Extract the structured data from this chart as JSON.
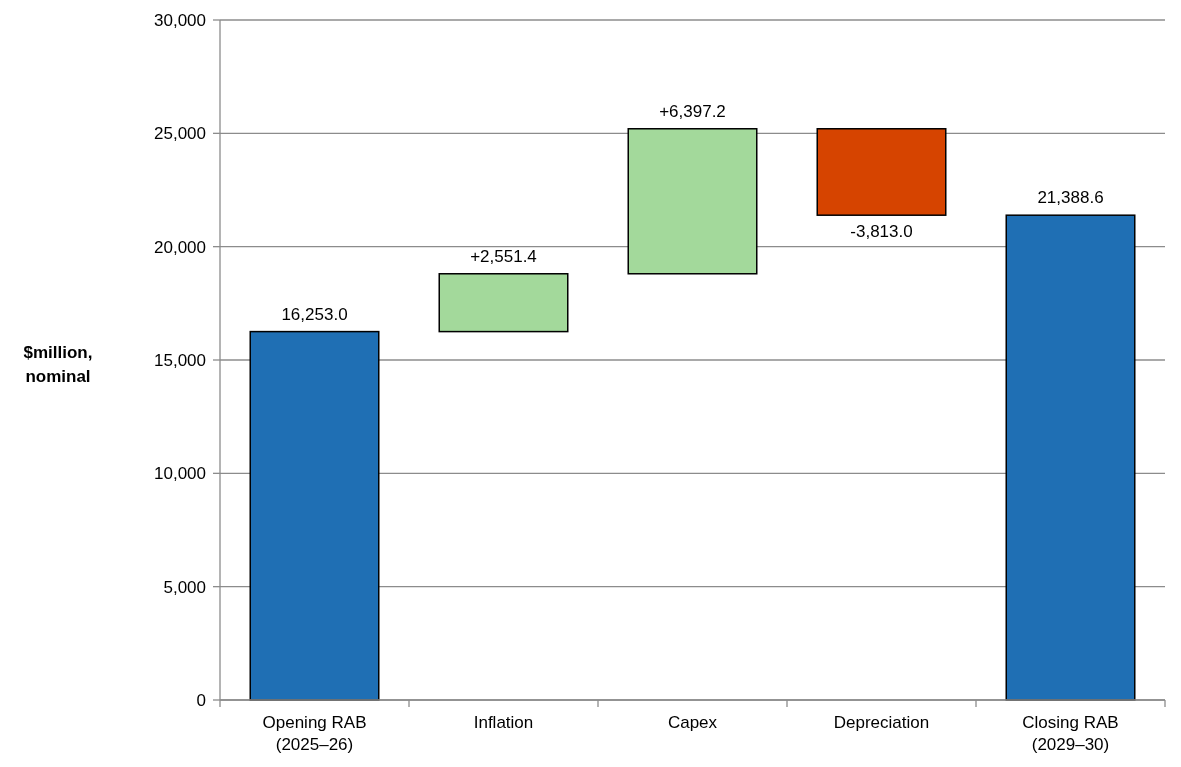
{
  "chart_data": {
    "type": "bar",
    "ylabel": "$million,\nnominal",
    "categories": [
      "Opening RAB\n(2025–26)",
      "Inflation",
      "Capex",
      "Depreciation",
      "Closing RAB\n(2029–30)"
    ],
    "values": [
      16253.0,
      2551.4,
      6397.2,
      -3813.0,
      21388.6
    ],
    "base": [
      0,
      16253.0,
      18804.4,
      25201.6,
      0
    ],
    "colors": [
      "#1f6fb4",
      "#a3d99b",
      "#a3d99b",
      "#d64400",
      "#1f6fb4"
    ],
    "value_labels": [
      "16,253.0",
      "+2,551.4",
      "+6,397.2",
      "-3,813.0",
      "21,388.6"
    ],
    "ylim": [
      0,
      30000
    ],
    "yticks": [
      {
        "value": 0,
        "label": "0"
      },
      {
        "value": 5000,
        "label": "5,000"
      },
      {
        "value": 10000,
        "label": "10,000"
      },
      {
        "value": 15000,
        "label": "15,000"
      },
      {
        "value": 20000,
        "label": "20,000"
      },
      {
        "value": 25000,
        "label": "25,000"
      },
      {
        "value": 30000,
        "label": "30,000"
      }
    ],
    "grid": "y"
  }
}
